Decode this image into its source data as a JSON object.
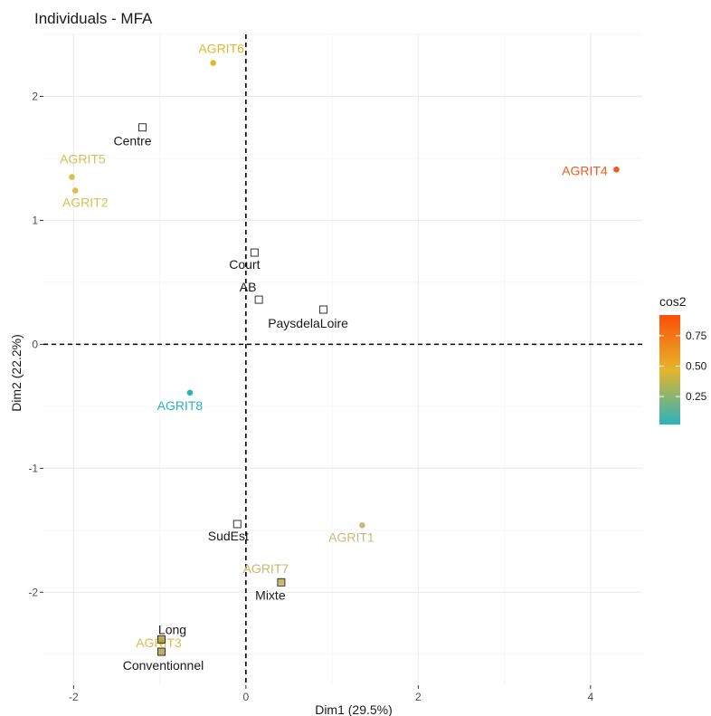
{
  "chart_data": {
    "type": "scatter",
    "title": "Individuals - MFA",
    "xlabel": "Dim1 (29.5%)",
    "ylabel": "Dim2 (22.2%)",
    "xlim": [
      -2.35,
      4.6
    ],
    "ylim": [
      -2.75,
      2.5
    ],
    "x_ticks": [
      -2,
      0,
      2,
      4
    ],
    "y_ticks": [
      -2,
      -1,
      0,
      1,
      2
    ],
    "x_tick_labels": [
      "-2",
      "0",
      "2",
      "4"
    ],
    "y_tick_labels": [
      "-2",
      "-1",
      "0",
      "1",
      "2"
    ],
    "grid": true,
    "reference_lines": {
      "x": 0,
      "y": 0,
      "style": "dashed"
    },
    "individuals": [
      {
        "label": "AGRIT6",
        "x": -0.38,
        "y": 2.27,
        "cos2": 0.5,
        "color": "#e6b52a"
      },
      {
        "label": "AGRIT5",
        "x": -2.02,
        "y": 1.35,
        "cos2": 0.4,
        "color": "#dbbd52"
      },
      {
        "label": "AGRIT2",
        "x": -1.98,
        "y": 1.24,
        "cos2": 0.4,
        "color": "#dbbd52"
      },
      {
        "label": "AGRIT4",
        "x": 4.3,
        "y": 1.41,
        "cos2": 0.92,
        "color": "#f05a22"
      },
      {
        "label": "AGRIT8",
        "x": -0.65,
        "y": -0.39,
        "cos2": 0.02,
        "color": "#2ab3bd"
      },
      {
        "label": "AGRIT1",
        "x": 1.35,
        "y": -1.46,
        "cos2": 0.25,
        "color": "#c9b87a"
      },
      {
        "label": "AGRIT7",
        "x": 0.41,
        "y": -1.91,
        "cos2": 0.28,
        "color": "#cbb56c"
      },
      {
        "label": "AGRIT3",
        "x": -0.98,
        "y": -2.4,
        "cos2": 0.4,
        "color": "#dbbd52"
      }
    ],
    "supplementary": [
      {
        "label": "Centre",
        "x": -1.2,
        "y": 1.75
      },
      {
        "label": "Court",
        "x": 0.1,
        "y": 0.74
      },
      {
        "label": "AB",
        "x": 0.15,
        "y": 0.36
      },
      {
        "label": "PaysdelaLoire",
        "x": 0.9,
        "y": 0.28
      },
      {
        "label": "SudEst",
        "x": -0.1,
        "y": -1.45
      },
      {
        "label": "Mixte",
        "x": 0.41,
        "y": -1.92
      },
      {
        "label": "Long",
        "x": -0.98,
        "y": -2.38
      },
      {
        "label": "Conventionnel",
        "x": -0.98,
        "y": -2.48
      }
    ],
    "legend": {
      "title": "cos2",
      "position": "right",
      "range": [
        0.02,
        0.92
      ],
      "ticks": [
        0.25,
        0.5,
        0.75
      ],
      "tick_labels": [
        "0.25",
        "0.50",
        "0.75"
      ],
      "gradient_colors": [
        "#2ab3bd",
        "#e6b52a",
        "#fc4e08"
      ]
    }
  }
}
